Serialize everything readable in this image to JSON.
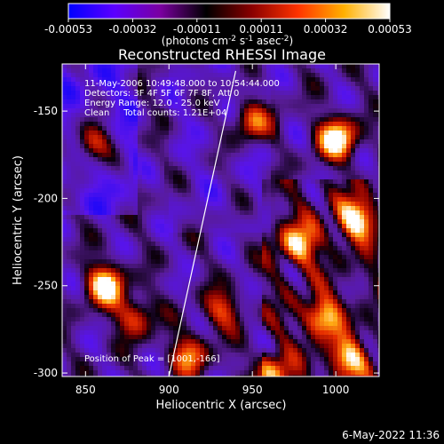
{
  "chart_data": {
    "type": "heatmap",
    "title": "Reconstructed RHESSI Image",
    "xlabel": "Heliocentric X (arcsec)",
    "ylabel": "Heliocentric Y (arcsec)",
    "xlim": [
      836,
      1026
    ],
    "ylim": [
      -302,
      -123
    ],
    "x_ticks": [
      "850",
      "900",
      "950",
      "1000"
    ],
    "y_ticks": [
      "-150",
      "-200",
      "-250",
      "-300"
    ],
    "colorbar": {
      "ticks": [
        "-0.00053",
        "-0.00032",
        "-0.00011",
        "0.00011",
        "0.00032",
        "0.00053"
      ],
      "unit_label_lines": [
        "(photons cm",
        "-2",
        " s",
        "-1",
        " asec",
        "-2",
        ")"
      ],
      "range": [
        -0.00053,
        0.00053
      ],
      "colors": [
        "#0000ff",
        "#5b00ff",
        "#7a00a0",
        "#000000",
        "#8a0000",
        "#ff3300",
        "#ffb000",
        "#ffffff"
      ]
    },
    "annotations": [
      "11-May-2006 10:49:48.000 to 10:54:44.000",
      "Detectors: 3F 4F 5F 6F 7F 8F, Att 0",
      "Energy Range: 12.0 - 25.0 keV",
      "Clean     Total counts: 1.21E+04",
      "Position of Peak = [1001,-166]"
    ],
    "limb_line": {
      "points": [
        [
          900,
          -302
        ],
        [
          940,
          -127
        ]
      ]
    },
    "bright_sources": [
      {
        "x": 1001,
        "y": -166,
        "intensity": 1.0
      },
      {
        "x": 862,
        "y": -250,
        "intensity": 0.95
      },
      {
        "x": 1012,
        "y": -212,
        "intensity": 0.85
      },
      {
        "x": 978,
        "y": -226,
        "intensity": 0.75
      },
      {
        "x": 992,
        "y": -268,
        "intensity": 0.72
      },
      {
        "x": 950,
        "y": -156,
        "intensity": 0.62
      },
      {
        "x": 854,
        "y": -168,
        "intensity": 0.68
      },
      {
        "x": 880,
        "y": -268,
        "intensity": 0.55
      },
      {
        "x": 912,
        "y": -290,
        "intensity": 0.62
      },
      {
        "x": 1008,
        "y": -292,
        "intensity": 0.72
      },
      {
        "x": 932,
        "y": -264,
        "intensity": 0.5
      },
      {
        "x": 962,
        "y": -300,
        "intensity": 0.58
      }
    ],
    "grid": false,
    "legend": "none"
  },
  "footer": {
    "timestamp": "6-May-2022 11:36"
  }
}
